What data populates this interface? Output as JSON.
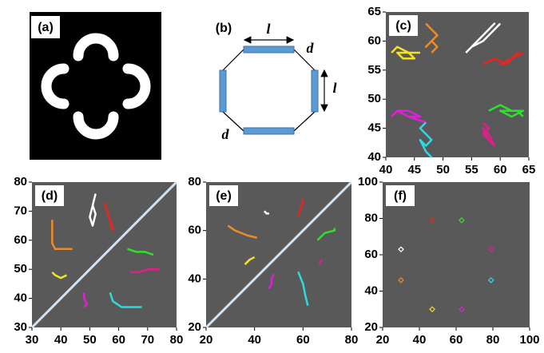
{
  "diagrams": {
    "a": {
      "label": "(a)"
    },
    "b": {
      "label": "(b)",
      "top_length": "l",
      "right_length": "l",
      "upper_right_gap": "d",
      "lower_left_gap": "d"
    }
  },
  "chart_data": [
    {
      "type": "line",
      "label": "(c)",
      "xlim": [
        40,
        65
      ],
      "xticks": [
        40,
        45,
        50,
        55,
        60,
        65
      ],
      "ylim": [
        40,
        65
      ],
      "yticks": [
        40,
        45,
        50,
        55,
        60,
        65
      ],
      "series": [
        {
          "color": "#ffffff",
          "x": [
            54,
            56,
            58,
            59,
            57,
            55,
            57,
            59,
            60
          ],
          "values": [
            58,
            60,
            62,
            63,
            61,
            59,
            60,
            62,
            63
          ]
        },
        {
          "color": "#e8261c",
          "x": [
            57,
            59,
            61,
            63,
            62,
            60,
            62,
            64
          ],
          "values": [
            56,
            57,
            56,
            58,
            57,
            56,
            57,
            58
          ]
        },
        {
          "color": "#f08a24",
          "x": [
            47,
            48,
            49,
            48,
            47,
            48,
            49,
            48
          ],
          "values": [
            63,
            62,
            61,
            60,
            59,
            60,
            59,
            58
          ]
        },
        {
          "color": "#f2e02a",
          "x": [
            41,
            42,
            44,
            45,
            43,
            42,
            44,
            46
          ],
          "values": [
            58,
            59,
            58,
            57,
            57,
            58,
            58,
            58
          ]
        },
        {
          "color": "#e01fd8",
          "x": [
            41,
            42,
            44,
            46,
            44,
            42,
            44,
            47
          ],
          "values": [
            47,
            48,
            48,
            47,
            47,
            48,
            47,
            46
          ]
        },
        {
          "color": "#30d8e0",
          "x": [
            47,
            46,
            47,
            48,
            47,
            46,
            47,
            48
          ],
          "values": [
            46,
            45,
            44,
            43,
            42,
            43,
            41,
            40
          ]
        },
        {
          "color": "#e0208a",
          "x": [
            57,
            58,
            57,
            58,
            59,
            58,
            57,
            58
          ],
          "values": [
            46,
            45,
            44,
            43,
            42,
            44,
            45,
            43
          ]
        },
        {
          "color": "#2ee02e",
          "x": [
            58,
            60,
            62,
            64,
            62,
            60,
            63,
            64
          ],
          "values": [
            48,
            49,
            48,
            48,
            47,
            48,
            48,
            47
          ]
        }
      ]
    },
    {
      "type": "line",
      "label": "(d)",
      "xlim": [
        30,
        80
      ],
      "xticks": [
        30,
        40,
        50,
        60,
        70,
        80
      ],
      "ylim": [
        30,
        80
      ],
      "yticks": [
        30,
        40,
        50,
        60,
        70,
        80
      ],
      "series": [
        {
          "color": "#cfe3f5",
          "x": [
            30,
            80
          ],
          "values": [
            30,
            80
          ]
        },
        {
          "color": "#ffffff",
          "x": [
            52,
            51,
            50,
            51,
            52,
            51
          ],
          "values": [
            76,
            72,
            68,
            65,
            69,
            72
          ]
        },
        {
          "color": "#e8261c",
          "x": [
            55,
            56,
            57,
            58,
            57,
            58
          ],
          "values": [
            73,
            70,
            67,
            64,
            66,
            63
          ]
        },
        {
          "color": "#f08a24",
          "x": [
            37,
            37,
            37,
            38,
            41,
            44
          ],
          "values": [
            67,
            63,
            59,
            57,
            57,
            57
          ]
        },
        {
          "color": "#f2e02a",
          "x": [
            37,
            38,
            40,
            42
          ],
          "values": [
            49,
            48,
            47,
            48
          ]
        },
        {
          "color": "#e01fd8",
          "x": [
            48,
            48,
            49,
            48
          ],
          "values": [
            42,
            40,
            38,
            37
          ]
        },
        {
          "color": "#30d8e0",
          "x": [
            57,
            58,
            61,
            65,
            68
          ],
          "values": [
            42,
            39,
            37,
            37,
            37
          ]
        },
        {
          "color": "#2ee02e",
          "x": [
            63,
            66,
            69,
            72
          ],
          "values": [
            57,
            56,
            56,
            55
          ]
        },
        {
          "color": "#e0208a",
          "x": [
            64,
            67,
            70,
            74
          ],
          "values": [
            49,
            49,
            50,
            50
          ]
        }
      ]
    },
    {
      "type": "line",
      "label": "(e)",
      "xlim": [
        20,
        80
      ],
      "xticks": [
        20,
        40,
        60,
        80
      ],
      "ylim": [
        20,
        80
      ],
      "yticks": [
        20,
        40,
        60,
        80
      ],
      "series": [
        {
          "color": "#cfe3f5",
          "x": [
            20,
            80
          ],
          "values": [
            20,
            80
          ]
        },
        {
          "color": "#ffffff",
          "x": [
            44,
            45,
            46
          ],
          "values": [
            68,
            67,
            67
          ]
        },
        {
          "color": "#e8261c",
          "x": [
            58,
            59,
            60,
            60
          ],
          "values": [
            66,
            69,
            72,
            73
          ]
        },
        {
          "color": "#f08a24",
          "x": [
            29,
            32,
            37,
            41
          ],
          "values": [
            62,
            60,
            58,
            57
          ]
        },
        {
          "color": "#f2e02a",
          "x": [
            36,
            38,
            40
          ],
          "values": [
            46,
            48,
            49
          ]
        },
        {
          "color": "#e01fd8",
          "x": [
            46,
            47,
            47,
            48
          ],
          "values": [
            36,
            38,
            40,
            42
          ]
        },
        {
          "color": "#30d8e0",
          "x": [
            58,
            60,
            61,
            62
          ],
          "values": [
            43,
            38,
            33,
            29
          ]
        },
        {
          "color": "#2ee02e",
          "x": [
            66,
            69,
            73,
            73
          ],
          "values": [
            56,
            59,
            60,
            61
          ]
        },
        {
          "color": "#e0208a",
          "x": [
            67,
            67,
            68
          ],
          "values": [
            46,
            47,
            48
          ]
        }
      ]
    },
    {
      "type": "scatter",
      "label": "(f)",
      "xlim": [
        20,
        100
      ],
      "xticks": [
        20,
        40,
        60,
        80,
        100
      ],
      "ylim": [
        20,
        100
      ],
      "yticks": [
        20,
        40,
        60,
        80,
        100
      ],
      "marker": "diamond",
      "series": [
        {
          "color": "#e8261c",
          "x": [
            47
          ],
          "values": [
            79
          ]
        },
        {
          "color": "#2ee02e",
          "x": [
            63
          ],
          "values": [
            79
          ]
        },
        {
          "color": "#ffffff",
          "x": [
            30
          ],
          "values": [
            63
          ]
        },
        {
          "color": "#e0208a",
          "x": [
            79
          ],
          "values": [
            63
          ]
        },
        {
          "color": "#f08a24",
          "x": [
            30
          ],
          "values": [
            46
          ]
        },
        {
          "color": "#30d8e0",
          "x": [
            79
          ],
          "values": [
            46
          ]
        },
        {
          "color": "#f2e02a",
          "x": [
            47
          ],
          "values": [
            30
          ]
        },
        {
          "color": "#e01fd8",
          "x": [
            63
          ],
          "values": [
            30
          ]
        }
      ]
    }
  ]
}
